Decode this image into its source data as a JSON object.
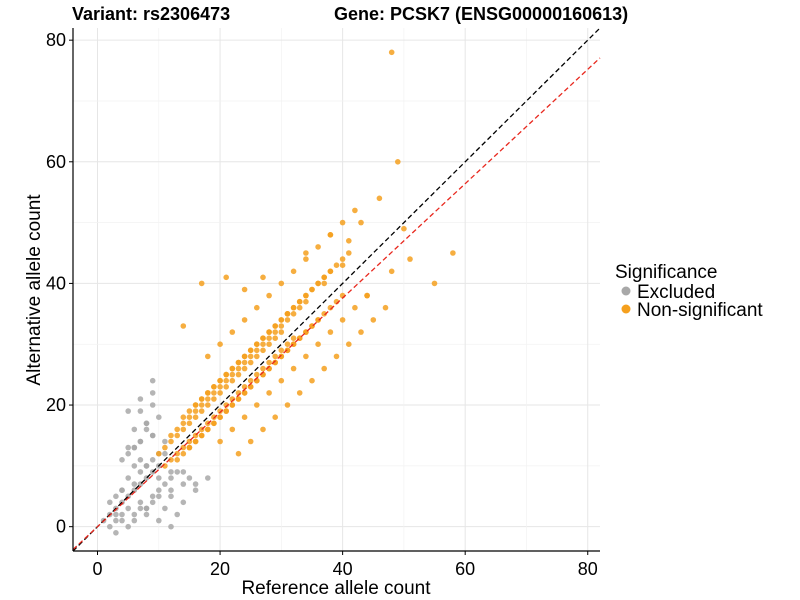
{
  "chart_data": {
    "type": "scatter",
    "title_left": "Variant: rs2306473",
    "title_right": "Gene: PCSK7 (ENSG00000160613)",
    "xlabel": "Reference allele count",
    "ylabel": "Alternative allele count",
    "xlim": [
      -4,
      82
    ],
    "ylim": [
      -4,
      82
    ],
    "x_ticks": [
      0,
      20,
      40,
      60,
      80
    ],
    "y_ticks": [
      0,
      20,
      40,
      60,
      80
    ],
    "grid": true,
    "legend": {
      "position": "right",
      "title": "Significance",
      "entries": [
        {
          "label": "Excluded",
          "color": "#a8a8a8"
        },
        {
          "label": "Non-significant",
          "color": "#f5a01e"
        }
      ]
    },
    "reference_lines": [
      {
        "color": "#000000",
        "style": "dashed",
        "slope": 1.0,
        "intercept": 0
      },
      {
        "color": "#e8281e",
        "style": "dashed",
        "slope": 0.94,
        "intercept": 0
      }
    ],
    "series": [
      {
        "name": "Excluded",
        "color": "#a8a8a8",
        "x": [
          1,
          2,
          3,
          3,
          4,
          4,
          5,
          5,
          6,
          6,
          7,
          7,
          8,
          8,
          9,
          9,
          10,
          10,
          11,
          12,
          13,
          14,
          15,
          16,
          2,
          3,
          4,
          5,
          6,
          7,
          8,
          9,
          10,
          11,
          12,
          13,
          14,
          3,
          4,
          5,
          6,
          7,
          8,
          9,
          10,
          11,
          12,
          4,
          5,
          6,
          7,
          8,
          9,
          10,
          5,
          6,
          7,
          8,
          9,
          10,
          6,
          7,
          8,
          9,
          7,
          8,
          9,
          2,
          4,
          6,
          8,
          10,
          12,
          14,
          16,
          18,
          5,
          9,
          12,
          3,
          7,
          11
        ],
        "y": [
          1,
          2,
          3,
          1,
          2,
          4,
          3,
          5,
          2,
          6,
          4,
          7,
          3,
          8,
          5,
          9,
          6,
          10,
          7,
          8,
          9,
          7,
          8,
          6,
          0,
          2,
          1,
          0,
          1,
          3,
          2,
          4,
          5,
          3,
          6,
          2,
          4,
          5,
          6,
          8,
          7,
          9,
          10,
          11,
          8,
          12,
          9,
          11,
          12,
          13,
          14,
          10,
          15,
          12,
          13,
          16,
          14,
          17,
          15,
          18,
          13,
          19,
          16,
          20,
          21,
          17,
          22,
          4,
          6,
          10,
          3,
          1,
          5,
          9,
          7,
          8,
          19,
          24,
          0,
          -1,
          11,
          14
        ]
      },
      {
        "name": "Non-significant",
        "color": "#f5a01e",
        "x": [
          10,
          11,
          12,
          13,
          14,
          15,
          16,
          17,
          18,
          19,
          20,
          21,
          22,
          23,
          24,
          25,
          26,
          27,
          28,
          29,
          30,
          11,
          12,
          13,
          14,
          15,
          16,
          17,
          18,
          19,
          20,
          21,
          22,
          23,
          24,
          25,
          26,
          27,
          28,
          29,
          30,
          31,
          32,
          12,
          13,
          14,
          15,
          16,
          17,
          18,
          19,
          20,
          21,
          22,
          23,
          24,
          25,
          26,
          27,
          28,
          29,
          30,
          31,
          32,
          33,
          34,
          13,
          14,
          15,
          16,
          17,
          18,
          19,
          20,
          21,
          22,
          23,
          24,
          25,
          26,
          27,
          28,
          29,
          30,
          31,
          32,
          33,
          34,
          35,
          36,
          14,
          15,
          16,
          17,
          18,
          19,
          20,
          21,
          22,
          23,
          24,
          25,
          26,
          27,
          28,
          29,
          30,
          31,
          32,
          33,
          34,
          35,
          36,
          37,
          38,
          15,
          16,
          17,
          18,
          19,
          20,
          21,
          22,
          23,
          24,
          25,
          26,
          27,
          28,
          29,
          30,
          31,
          32,
          33,
          34,
          35,
          36,
          37,
          38,
          39,
          40,
          16,
          17,
          18,
          19,
          20,
          21,
          22,
          23,
          24,
          25,
          26,
          27,
          28,
          29,
          30,
          31,
          32,
          33,
          34,
          35,
          36,
          37,
          38,
          39,
          40,
          41,
          18,
          20,
          22,
          24,
          26,
          28,
          30,
          32,
          34,
          36,
          38,
          40,
          42,
          20,
          22,
          24,
          26,
          28,
          30,
          32,
          34,
          36,
          38,
          40,
          42,
          44,
          23,
          25,
          27,
          29,
          31,
          33,
          35,
          37,
          39,
          41,
          43,
          45,
          47,
          14,
          17,
          21,
          24,
          27,
          31,
          34,
          38,
          41,
          44,
          48,
          49,
          46,
          51,
          55,
          58,
          50,
          48,
          43,
          40,
          37
        ],
        "y": [
          12,
          13,
          14,
          15,
          16,
          17,
          18,
          19,
          20,
          21,
          22,
          23,
          24,
          25,
          26,
          27,
          28,
          29,
          30,
          31,
          32,
          10,
          11,
          12,
          13,
          14,
          15,
          16,
          17,
          18,
          19,
          20,
          21,
          22,
          23,
          24,
          25,
          26,
          27,
          28,
          29,
          30,
          31,
          15,
          16,
          17,
          18,
          19,
          20,
          21,
          22,
          23,
          24,
          25,
          26,
          27,
          28,
          29,
          30,
          31,
          32,
          33,
          34,
          35,
          36,
          37,
          11,
          12,
          13,
          14,
          15,
          16,
          17,
          18,
          19,
          20,
          21,
          22,
          23,
          24,
          25,
          26,
          27,
          28,
          29,
          30,
          31,
          32,
          33,
          34,
          18,
          19,
          20,
          21,
          22,
          23,
          24,
          25,
          26,
          27,
          28,
          29,
          30,
          31,
          32,
          33,
          34,
          35,
          36,
          37,
          38,
          39,
          40,
          41,
          42,
          13,
          14,
          15,
          16,
          17,
          18,
          19,
          20,
          21,
          22,
          23,
          24,
          25,
          26,
          27,
          28,
          29,
          30,
          31,
          32,
          33,
          34,
          35,
          36,
          37,
          38,
          20,
          21,
          22,
          23,
          24,
          25,
          26,
          27,
          28,
          29,
          30,
          31,
          32,
          33,
          34,
          35,
          36,
          37,
          38,
          39,
          40,
          41,
          42,
          43,
          44,
          45,
          28,
          30,
          32,
          34,
          36,
          38,
          40,
          42,
          44,
          46,
          48,
          50,
          52,
          14,
          16,
          18,
          20,
          22,
          24,
          26,
          28,
          30,
          32,
          34,
          36,
          38,
          12,
          14,
          16,
          18,
          20,
          22,
          24,
          26,
          28,
          30,
          32,
          34,
          36,
          33,
          40,
          41,
          39,
          41,
          35,
          45,
          48,
          47,
          38,
          42,
          60,
          54,
          44,
          40,
          45,
          49,
          78,
          50,
          43,
          40
        ]
      }
    ]
  }
}
